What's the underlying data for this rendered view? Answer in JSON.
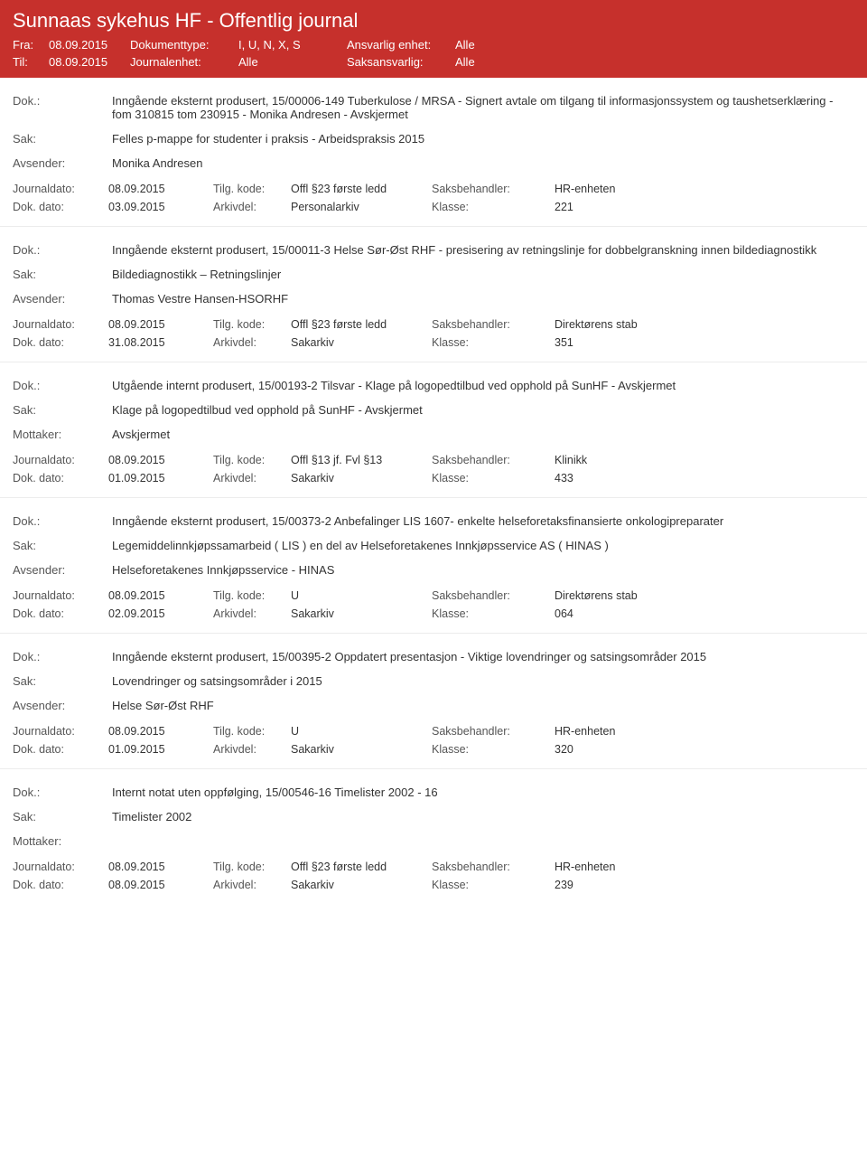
{
  "header": {
    "title": "Sunnaas sykehus HF - Offentlig journal",
    "fra_label": "Fra:",
    "fra_value": "08.09.2015",
    "til_label": "Til:",
    "til_value": "08.09.2015",
    "dokumenttype_label": "Dokumenttype:",
    "dokumenttype_value": "I, U, N, X, S",
    "journalenhet_label": "Journalenhet:",
    "journalenhet_value": "Alle",
    "ansvarlig_label": "Ansvarlig enhet:",
    "ansvarlig_value": "Alle",
    "saksansvarlig_label": "Saksansvarlig:",
    "saksansvarlig_value": "Alle"
  },
  "labels": {
    "dok": "Dok.:",
    "sak": "Sak:",
    "avsender": "Avsender:",
    "mottaker": "Mottaker:",
    "journaldato": "Journaldato:",
    "dokdato": "Dok. dato:",
    "tilgkode": "Tilg. kode:",
    "arkivdel": "Arkivdel:",
    "saksbehandler": "Saksbehandler:",
    "klasse": "Klasse:"
  },
  "entries": [
    {
      "dok": "Inngående eksternt produsert, 15/00006-149 Tuberkulose / MRSA - Signert avtale om tilgang til informasjonssystem og taushetserklæring - fom 310815 tom 230915 - Monika Andresen - Avskjermet",
      "sak": "Felles p-mappe for studenter i praksis - Arbeidspraksis 2015",
      "party_label": "Avsender:",
      "party": "Monika Andresen",
      "journaldato": "08.09.2015",
      "tilgkode": "Offl §23 første ledd",
      "saksbehandler": "HR-enheten",
      "dokdato": "03.09.2015",
      "arkivdel": "Personalarkiv",
      "klasse": "221"
    },
    {
      "dok": "Inngående eksternt produsert, 15/00011-3 Helse Sør-Øst RHF - presisering av retningslinje for dobbelgranskning innen bildediagnostikk",
      "sak": "Bildediagnostikk – Retningslinjer",
      "party_label": "Avsender:",
      "party": "Thomas Vestre Hansen-HSORHF",
      "journaldato": "08.09.2015",
      "tilgkode": "Offl §23 første ledd",
      "saksbehandler": "Direktørens stab",
      "dokdato": "31.08.2015",
      "arkivdel": "Sakarkiv",
      "klasse": "351"
    },
    {
      "dok": "Utgående internt produsert, 15/00193-2 Tilsvar - Klage på logopedtilbud ved opphold på SunHF - Avskjermet",
      "sak": "Klage på logopedtilbud ved opphold på SunHF - Avskjermet",
      "party_label": "Mottaker:",
      "party": "Avskjermet",
      "journaldato": "08.09.2015",
      "tilgkode": "Offl §13 jf. Fvl §13",
      "saksbehandler": "Klinikk",
      "dokdato": "01.09.2015",
      "arkivdel": "Sakarkiv",
      "klasse": "433"
    },
    {
      "dok": "Inngående eksternt produsert, 15/00373-2 Anbefalinger LIS 1607- enkelte helseforetaksfinansierte onkologipreparater",
      "sak": "Legemiddelinnkjøpssamarbeid ( LIS ) en del av Helseforetakenes Innkjøpsservice AS ( HINAS )",
      "party_label": "Avsender:",
      "party": "Helseforetakenes Innkjøpsservice - HINAS",
      "journaldato": "08.09.2015",
      "tilgkode": "U",
      "saksbehandler": "Direktørens stab",
      "dokdato": "02.09.2015",
      "arkivdel": "Sakarkiv",
      "klasse": "064"
    },
    {
      "dok": "Inngående eksternt produsert, 15/00395-2 Oppdatert presentasjon - Viktige lovendringer og satsingsområder 2015",
      "sak": "Lovendringer og satsingsområder i 2015",
      "party_label": "Avsender:",
      "party": "Helse Sør-Øst RHF",
      "journaldato": "08.09.2015",
      "tilgkode": "U",
      "saksbehandler": "HR-enheten",
      "dokdato": "01.09.2015",
      "arkivdel": "Sakarkiv",
      "klasse": "320"
    },
    {
      "dok": "Internt notat uten oppfølging, 15/00546-16 Timelister 2002 - 16",
      "sak": "Timelister 2002",
      "party_label": "Mottaker:",
      "party": "",
      "journaldato": "08.09.2015",
      "tilgkode": "Offl §23 første ledd",
      "saksbehandler": "HR-enheten",
      "dokdato": "08.09.2015",
      "arkivdel": "Sakarkiv",
      "klasse": "239"
    }
  ]
}
